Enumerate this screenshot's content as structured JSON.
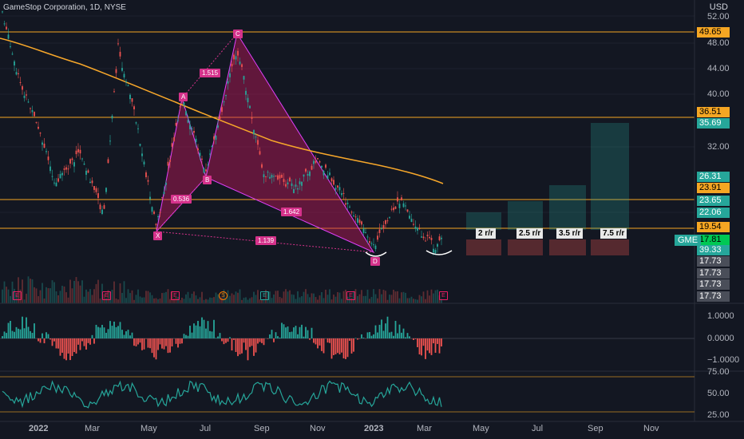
{
  "header": {
    "title": "GameStop Corporation, 1D, NYSE",
    "currency": "USD"
  },
  "price_axis": {
    "ticks": [
      "52.00",
      "48.00",
      "44.00",
      "40.00",
      "32.00",
      "22.06"
    ],
    "labels": [
      {
        "text": "49.65",
        "bg": "#f5a623",
        "fg": "#000000"
      },
      {
        "text": "36.51",
        "bg": "#f5a623",
        "fg": "#000000"
      },
      {
        "text": "35.69",
        "bg": "#26a69a",
        "fg": "#ffffff"
      },
      {
        "text": "26.31",
        "bg": "#26a69a",
        "fg": "#ffffff"
      },
      {
        "text": "23.91",
        "bg": "#f5a623",
        "fg": "#000000"
      },
      {
        "text": "23.65",
        "bg": "#26a69a",
        "fg": "#ffffff"
      },
      {
        "text": "22.06",
        "bg": "#26a69a",
        "fg": "#ffffff"
      },
      {
        "text": "19.54",
        "bg": "#f5a623",
        "fg": "#000000"
      },
      {
        "text": "17.81",
        "bg": "#00c853",
        "fg": "#000000"
      },
      {
        "text": "39.33",
        "bg": "#26a69a",
        "fg": "#ffffff"
      },
      {
        "text": "17.73",
        "bg": "#4a4e59",
        "fg": "#ffffff"
      },
      {
        "text": "17.73",
        "bg": "#4a4e59",
        "fg": "#ffffff"
      },
      {
        "text": "17.73",
        "bg": "#4a4e59",
        "fg": "#ffffff"
      },
      {
        "text": "17.73",
        "bg": "#4a4e59",
        "fg": "#ffffff"
      }
    ],
    "symbol_tag": "GME"
  },
  "oscillator_axis": {
    "ticks": [
      "1.0000",
      "0.0000",
      "−1.0000"
    ]
  },
  "rsi_axis": {
    "ticks": [
      "75.00",
      "50.00",
      "25.00"
    ]
  },
  "time_axis": {
    "ticks": [
      "2022",
      "Mar",
      "May",
      "Jul",
      "Sep",
      "Nov",
      "2023",
      "Mar",
      "May",
      "Jul",
      "Sep",
      "Nov"
    ]
  },
  "pattern": {
    "points": [
      "X",
      "A",
      "B",
      "C",
      "D"
    ],
    "ratios": [
      "1.515",
      "0.536",
      "1.642",
      "1.139"
    ]
  },
  "targets": {
    "labels": [
      "2 r/r",
      "2.5 r/r",
      "3.5 r/r",
      "7.5 r/r"
    ]
  },
  "events": {
    "markers": [
      "E",
      "E",
      "E",
      "S",
      "E",
      "E",
      "E"
    ]
  },
  "colors": {
    "background": "#131722",
    "up": "#26a69a",
    "down": "#ef5350",
    "level_line": "#f5a623",
    "pattern_fill": "#e040fb",
    "ma_line": "#f7a72a",
    "rsi_line": "#26a69a"
  },
  "chart_data": {
    "type": "line",
    "title": "GameStop Corporation, 1D, NYSE",
    "x": [
      "2022",
      "Mar",
      "May",
      "Jul",
      "Sep",
      "Nov",
      "2023",
      "Mar"
    ],
    "series": [
      {
        "name": "GME",
        "values": [
          52,
          25,
          24,
          46,
          31,
          26,
          18,
          17.81
        ]
      }
    ],
    "horizontal_levels": [
      49.65,
      36.51,
      23.91,
      19.54
    ],
    "ylim": [
      14,
      54
    ]
  }
}
